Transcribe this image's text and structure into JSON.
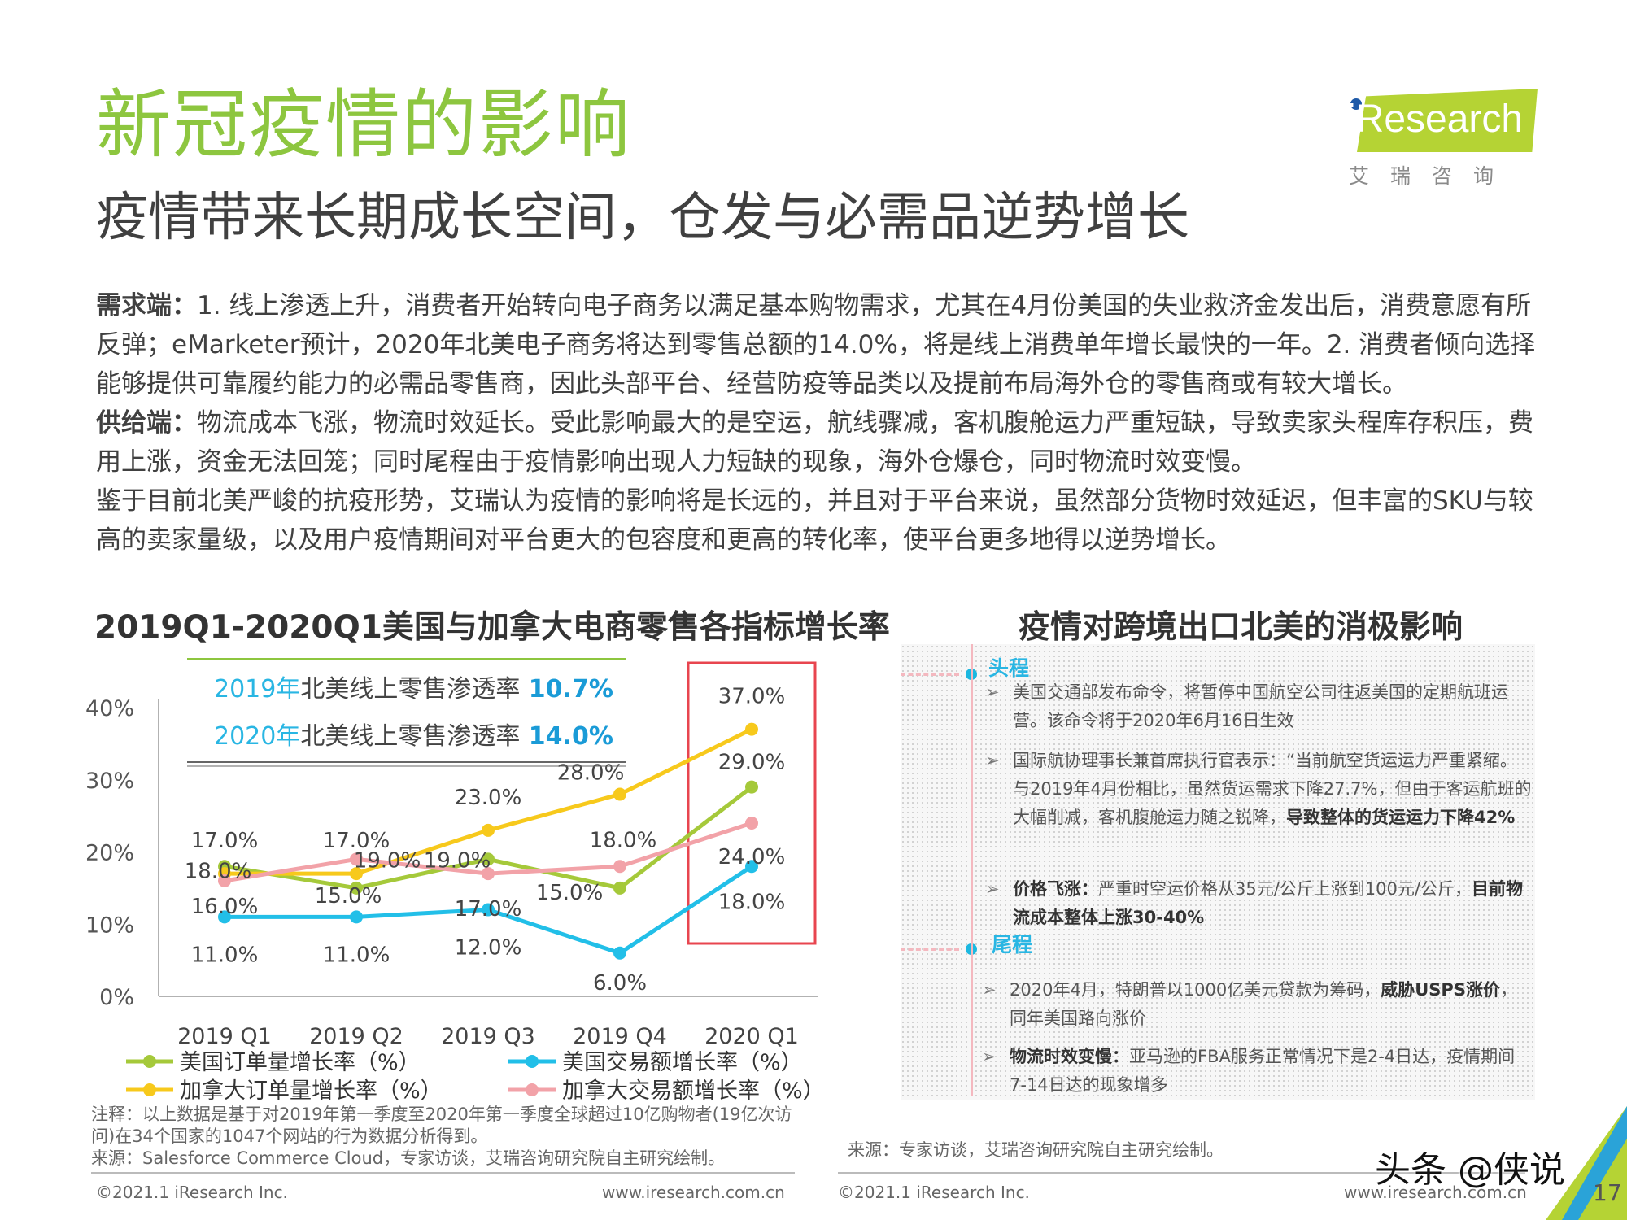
{
  "header": {
    "title": "新冠疫情的影响",
    "subtitle": "疫情带来长期成长空间，仓发与必需品逆势增长",
    "logo_text": "iResearch",
    "logo_cn": "艾瑞咨询"
  },
  "body": {
    "demand_label": "需求端：",
    "demand_text": "1. 线上渗透上升，消费者开始转向电子商务以满足基本购物需求，尤其在4月份美国的失业救济金发出后，消费意愿有所反弹；eMarketer预计，2020年北美电子商务将达到零售总额的14.0%，将是线上消费单年增长最快的一年。2. 消费者倾向选择能够提供可靠履约能力的必需品零售商，因此头部平台、经营防疫等品类以及提前布局海外仓的零售商或有较大增长。",
    "supply_label": "供给端：",
    "supply_text": "物流成本飞涨，物流时效延长。受此影响最大的是空运，航线骤减，客机腹舱运力严重短缺，导致卖家头程库存积压，费用上涨，资金无法回笼；同时尾程由于疫情影响出现人力短缺的现象，海外仓爆仓，同时物流时效变慢。",
    "conclusion": "鉴于目前北美严峻的抗疫形势，艾瑞认为疫情的影响将是长远的，并且对于平台来说，虽然部分货物时效延迟，但丰富的SKU与较高的卖家量级，以及用户疫情期间对平台更大的包容度和更高的转化率，使平台更多地得以逆势增长。"
  },
  "chart_data": {
    "type": "line",
    "title": "2019Q1-2020Q1美国与加拿大电商零售各指标增长率",
    "categories": [
      "2019 Q1",
      "2019 Q2",
      "2019 Q3",
      "2019 Q4",
      "2020 Q1"
    ],
    "ylim": [
      0,
      40
    ],
    "yticks": [
      "0%",
      "10%",
      "20%",
      "30%",
      "40%"
    ],
    "grid": false,
    "legend_position": "bottom",
    "series": [
      {
        "name": "美国订单量增长率（%）",
        "color": "#a5c93a",
        "values": [
          18,
          15,
          19,
          15,
          29
        ],
        "labels": [
          "18.0%",
          "15.0%",
          "19.0%",
          "15.0%",
          "29.0%"
        ]
      },
      {
        "name": "美国交易额增长率（%）",
        "color": "#22bfe8",
        "values": [
          11,
          11,
          12,
          6,
          18
        ],
        "labels": [
          "11.0%",
          "11.0%",
          "12.0%",
          "6.0%",
          "18.0%"
        ]
      },
      {
        "name": "加拿大订单量增长率（%）",
        "color": "#f7c91c",
        "values": [
          17,
          17,
          23,
          28,
          37
        ],
        "labels": [
          "17.0%",
          "17.0%",
          "23.0%",
          "28.0%",
          "37.0%"
        ]
      },
      {
        "name": "加拿大交易额增长率（%）",
        "color": "#f2a2a8",
        "values": [
          16,
          19,
          17,
          18,
          24
        ],
        "labels": [
          "16.0%",
          "19.0%",
          "17.0%",
          "18.0%",
          "24.0%"
        ]
      }
    ],
    "annotations": [
      {
        "year": "2019年",
        "text": "北美线上零售渗透率",
        "value": "10.7%"
      },
      {
        "year": "2020年",
        "text": "北美线上零售渗透率",
        "value": "14.0%"
      }
    ],
    "highlight_category": "2020 Q1",
    "highlight_color": "#e8454f"
  },
  "note": {
    "line1": "注释：以上数据是基于对2019年第一季度至2020年第一季度全球超过10亿购物者(19亿次访问)在34个国家的1047个网站的行为数据分析得到。",
    "source": "来源：Salesforce Commerce Cloud，专家访谈，艾瑞咨询研究院自主研究绘制。"
  },
  "right_panel": {
    "title": "疫情对跨境出口北美的消极影响",
    "section1_label": "头程",
    "section2_label": "尾程",
    "b1": "美国交通部发布命令，将暂停中国航空公司往返美国的定期航班运营。该命令将于2020年6月16日生效",
    "b2_a": "国际航协理事长兼首席执行官表示：“当前航空货运运力严重紧缩。与2019年4月份相比，虽然货运需求下降27.7%，但由于客运航班的大幅削减，客机腹舱运力随之锐降，",
    "b2_b": "导致整体的货运运力下降42%",
    "b3_a": "价格飞涨：",
    "b3_b": "严重时空运价格从35元/公斤上涨到100元/公斤，",
    "b3_c": "目前物流成本整体上涨30-40%",
    "b4_a": "2020年4月，特朗普以1000亿美元贷款为筹码，",
    "b4_b": "威胁USPS涨价",
    "b4_c": "，同年美国路向涨价",
    "b5_a": "物流时效变慢：",
    "b5_b": "亚马逊的FBA服务正常情况下是2-4日达，疫情期间7-14日达的现象增多",
    "source": "来源：专家访谈，艾瑞咨询研究院自主研究绘制。"
  },
  "footer": {
    "copyright_left": "©2021.1 iResearch Inc.",
    "url_left": "www.iresearch.com.cn",
    "copyright_right": "©2021.1 iResearch Inc.",
    "url_right": "www.iresearch.com.cn",
    "watermark": "头条 @侠说",
    "page_number": "17"
  }
}
